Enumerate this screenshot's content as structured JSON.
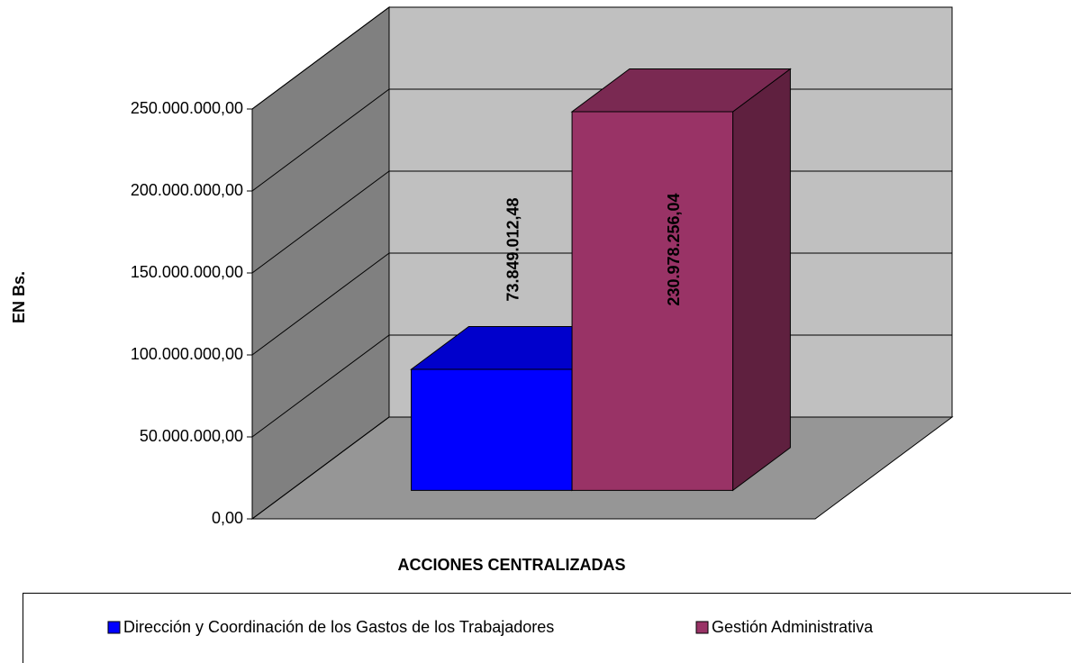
{
  "chart_data": {
    "type": "bar3d",
    "x_label": "ACCIONES CENTRALIZADAS",
    "y_label": "EN Bs.",
    "series": [
      {
        "name": "Dirección y Coordinación de los Gastos de los Trabajadores",
        "color": "#0000ff",
        "values": [
          73849012.48
        ],
        "value_labels": [
          "73.849.012,48"
        ]
      },
      {
        "name": "Gestión Administrativa",
        "color": "#993366",
        "values": [
          230978256.04
        ],
        "value_labels": [
          "230.978.256,04"
        ]
      }
    ],
    "ylim": [
      0,
      250000000
    ],
    "yticks": [
      {
        "value": 0,
        "label": "0,00"
      },
      {
        "value": 50000000,
        "label": "50.000.000,00"
      },
      {
        "value": 100000000,
        "label": "100.000.000,00"
      },
      {
        "value": 150000000,
        "label": "150.000.000,00"
      },
      {
        "value": 200000000,
        "label": "200.000.000,00"
      },
      {
        "value": 250000000,
        "label": "250.000.000,00"
      }
    ],
    "grid": true,
    "legend": "bottom"
  }
}
